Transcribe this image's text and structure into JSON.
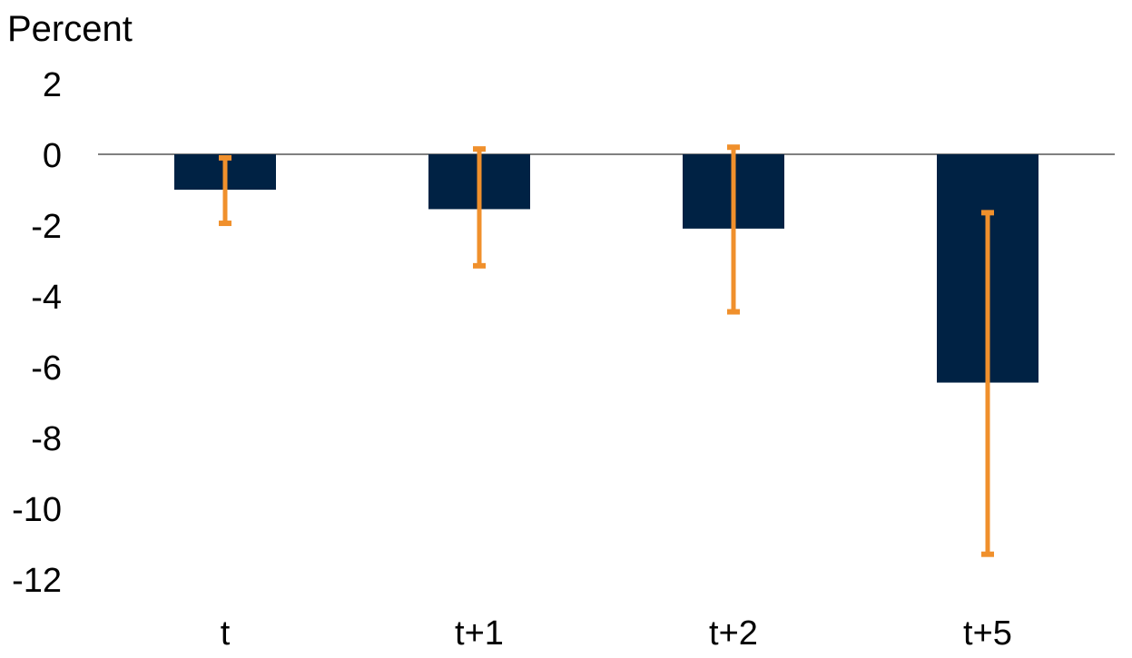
{
  "chart_data": {
    "type": "bar",
    "ylabel": "Percent",
    "categories": [
      "t",
      "t+1",
      "t+2",
      "t+5"
    ],
    "values": [
      -1.0,
      -1.55,
      -2.1,
      -6.45
    ],
    "error_low": [
      -1.95,
      -3.15,
      -4.45,
      -11.3
    ],
    "error_high": [
      -0.1,
      0.15,
      0.2,
      -1.65
    ],
    "ylim": [
      -13,
      2.5
    ],
    "yticks": [
      "2",
      "0",
      "-2",
      "-4",
      "-6",
      "-8",
      "-10",
      "-12"
    ],
    "ytick_values": [
      2,
      0,
      -2,
      -4,
      -6,
      -8,
      -10,
      -12
    ],
    "grid": false,
    "colors": {
      "bar": "#002244",
      "error": "#f0902c",
      "zero_line": "#000000"
    }
  }
}
